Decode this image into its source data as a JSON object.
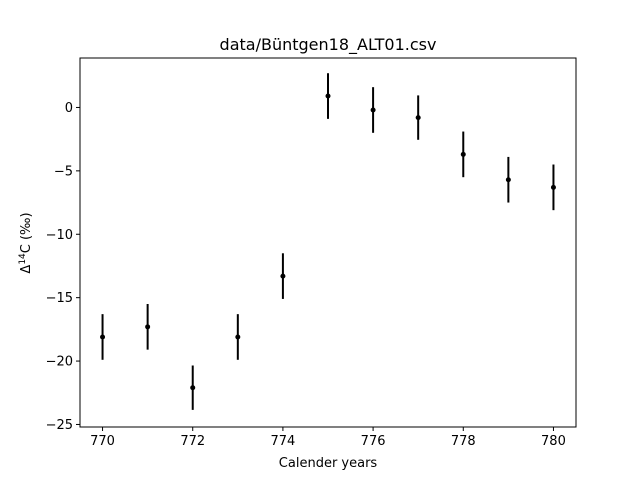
{
  "chart_data": {
    "type": "scatter",
    "title": "data/Büntgen18_ALT01.csv",
    "xlabel": "Calender years",
    "ylabel_main": "Δ",
    "ylabel_sup": "14",
    "ylabel_rest": "C (‰)",
    "xlim": [
      769.5,
      780.5
    ],
    "ylim": [
      -25.2,
      3.9
    ],
    "xticks": [
      770,
      772,
      774,
      776,
      778,
      780
    ],
    "yticks": [
      0,
      -5,
      -10,
      -15,
      -20,
      -25
    ],
    "ytick_labels": [
      "0",
      "−5",
      "−10",
      "−15",
      "−20",
      "−25"
    ],
    "grid": false,
    "series": [
      {
        "color": "#000000",
        "x": [
          770,
          771,
          772,
          773,
          774,
          775,
          776,
          777,
          778,
          779,
          780
        ],
        "y": [
          -18.1,
          -17.3,
          -22.1,
          -18.1,
          -13.3,
          0.9,
          -0.2,
          -0.8,
          -3.7,
          -5.7,
          -6.3
        ],
        "yerr": [
          1.8,
          1.8,
          1.75,
          1.8,
          1.8,
          1.8,
          1.8,
          1.75,
          1.8,
          1.8,
          1.8
        ]
      }
    ]
  }
}
